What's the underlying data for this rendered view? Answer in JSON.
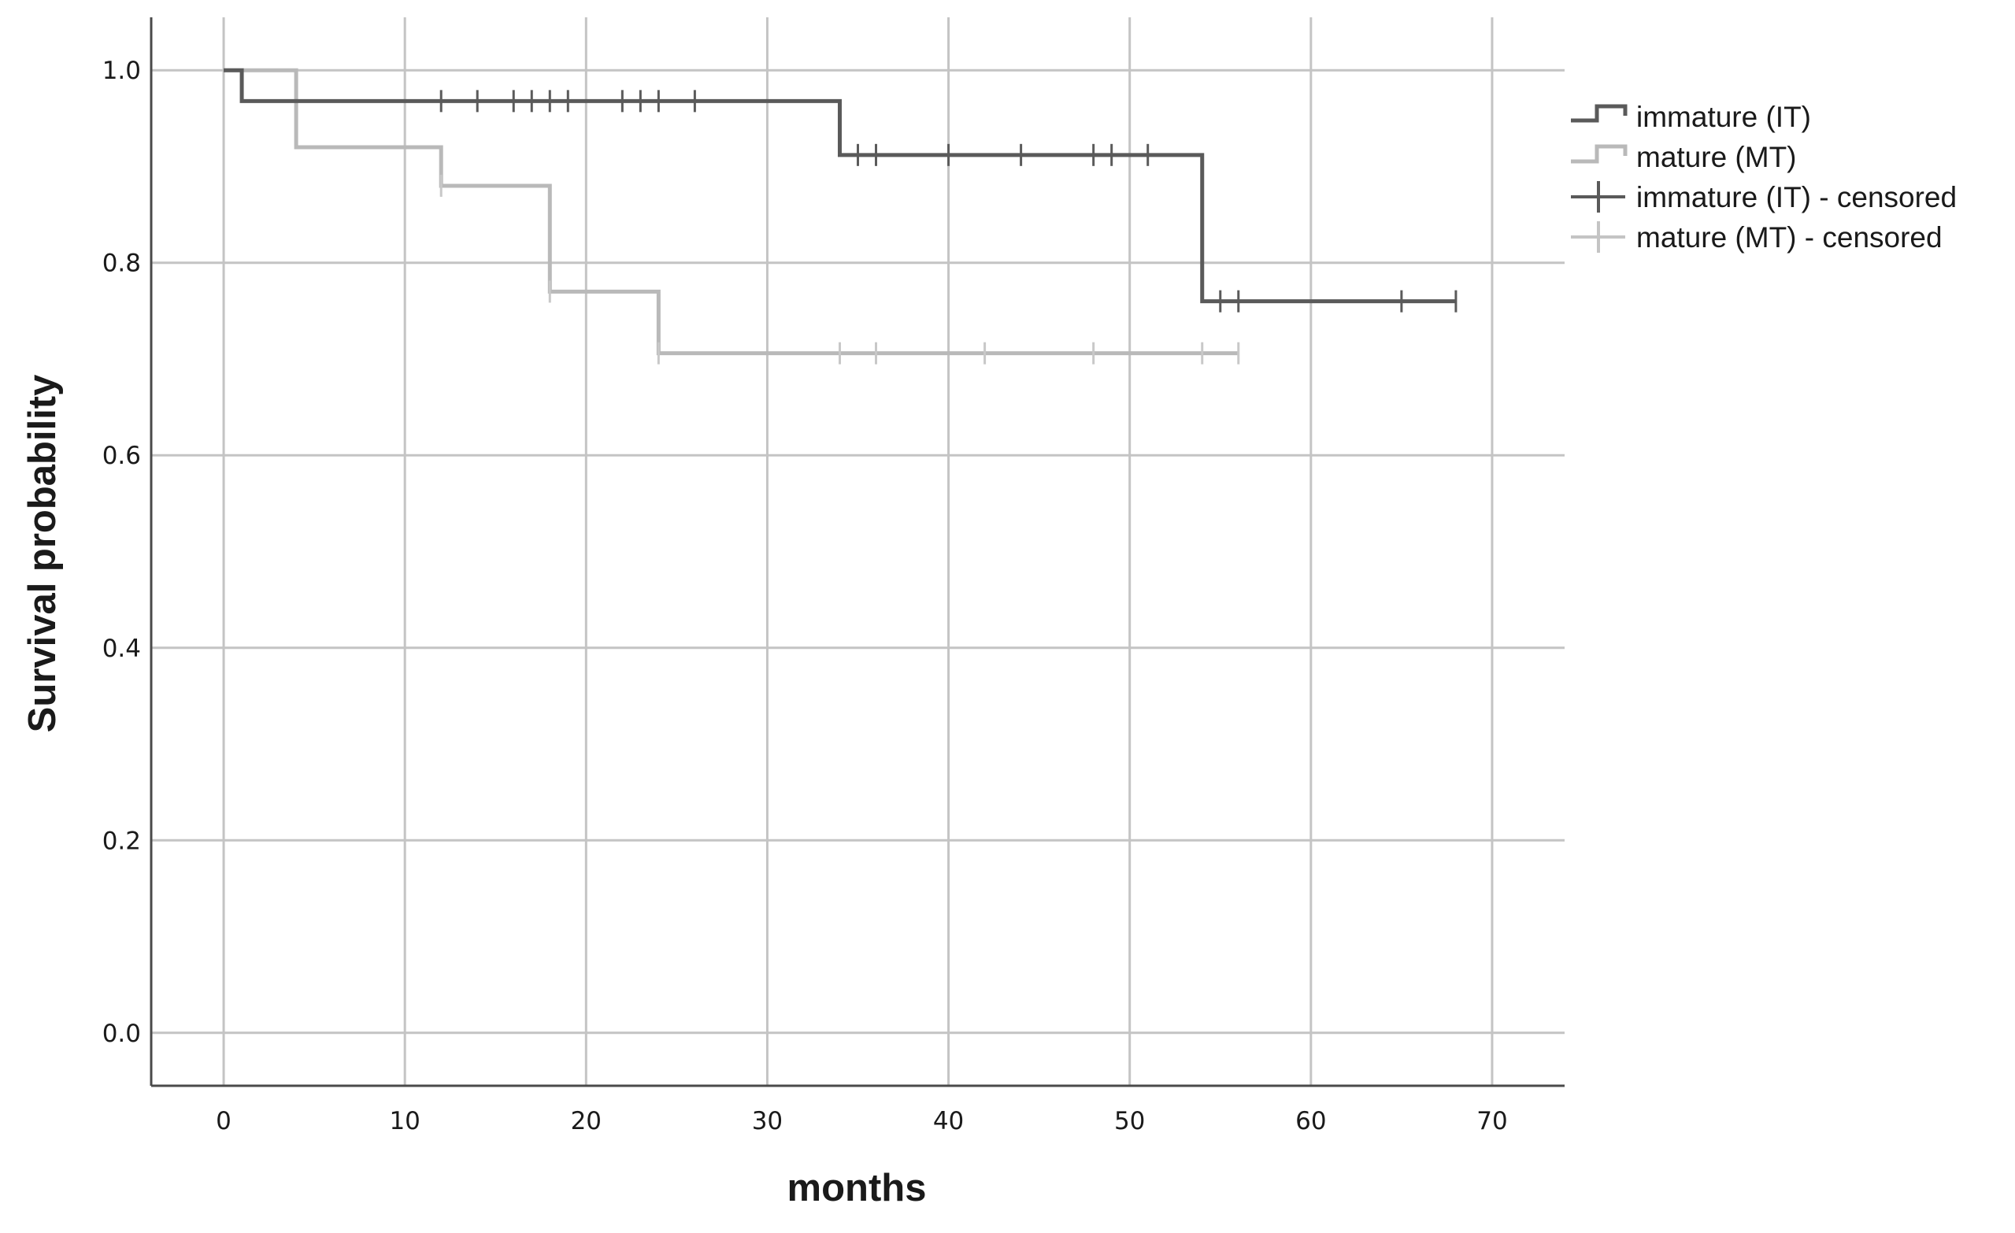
{
  "chart_data": {
    "type": "line",
    "subtype": "kaplan-meier step",
    "title": "",
    "xlabel": "months",
    "ylabel": "Survival probability",
    "xlim": [
      -4,
      74
    ],
    "ylim": [
      -0.055,
      1.055
    ],
    "x_ticks": [
      0,
      10,
      20,
      30,
      40,
      50,
      60,
      70
    ],
    "y_ticks": [
      0.0,
      0.2,
      0.4,
      0.6,
      0.8,
      1.0
    ],
    "y_tick_labels": [
      "0.0",
      "0.2",
      "0.4",
      "0.6",
      "0.8",
      "1.0"
    ],
    "grid": true,
    "legend_position": "top-right, outside plot",
    "series": [
      {
        "name": "immature (IT)",
        "color": "#5a5a5a",
        "steps": [
          [
            0,
            1.0
          ],
          [
            1,
            0.968
          ],
          [
            34,
            0.912
          ],
          [
            54,
            0.76
          ],
          [
            68,
            0.76
          ]
        ],
        "censored_name": "immature (IT) - censored",
        "censored": [
          [
            12,
            0.968
          ],
          [
            14,
            0.968
          ],
          [
            16,
            0.968
          ],
          [
            17,
            0.968
          ],
          [
            18,
            0.968
          ],
          [
            19,
            0.968
          ],
          [
            22,
            0.968
          ],
          [
            23,
            0.968
          ],
          [
            24,
            0.968
          ],
          [
            26,
            0.968
          ],
          [
            35,
            0.912
          ],
          [
            36,
            0.912
          ],
          [
            40,
            0.912
          ],
          [
            44,
            0.912
          ],
          [
            48,
            0.912
          ],
          [
            49,
            0.912
          ],
          [
            51,
            0.912
          ],
          [
            55,
            0.76
          ],
          [
            56,
            0.76
          ],
          [
            65,
            0.76
          ],
          [
            68,
            0.76
          ]
        ]
      },
      {
        "name": "mature (MT)",
        "color": "#b9b9b9",
        "steps": [
          [
            0,
            1.0
          ],
          [
            4,
            0.92
          ],
          [
            12,
            0.88
          ],
          [
            18,
            0.77
          ],
          [
            24,
            0.706
          ],
          [
            56,
            0.706
          ]
        ],
        "censored_name": "mature (MT) - censored",
        "censored": [
          [
            12,
            0.88
          ],
          [
            18,
            0.77
          ],
          [
            24,
            0.706
          ],
          [
            34,
            0.706
          ],
          [
            36,
            0.706
          ],
          [
            42,
            0.706
          ],
          [
            48,
            0.706
          ],
          [
            54,
            0.706
          ],
          [
            56,
            0.706
          ]
        ]
      }
    ]
  },
  "colors": {
    "axis": "#4a4a4a",
    "grid": "#c4c4c4",
    "text": "#1a1a1a"
  }
}
